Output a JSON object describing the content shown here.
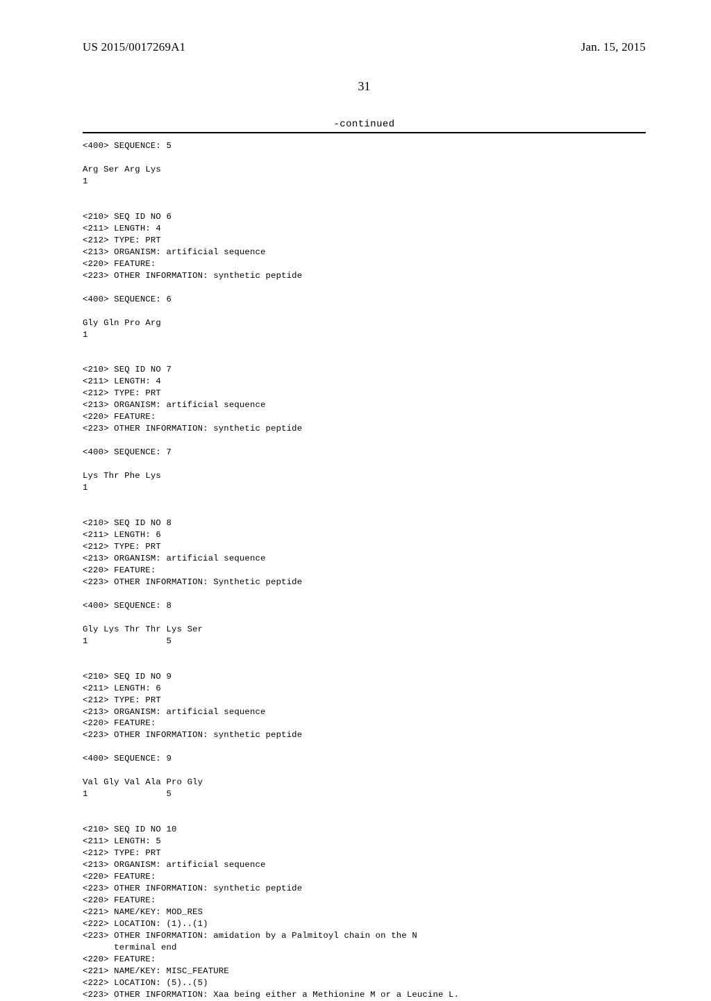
{
  "header": {
    "publication_number": "US 2015/0017269A1",
    "date": "Jan. 15, 2015"
  },
  "page_number": "31",
  "continued_label": "-continued",
  "listing_text": "<400> SEQUENCE: 5\n\nArg Ser Arg Lys\n1\n\n\n<210> SEQ ID NO 6\n<211> LENGTH: 4\n<212> TYPE: PRT\n<213> ORGANISM: artificial sequence\n<220> FEATURE:\n<223> OTHER INFORMATION: synthetic peptide\n\n<400> SEQUENCE: 6\n\nGly Gln Pro Arg\n1\n\n\n<210> SEQ ID NO 7\n<211> LENGTH: 4\n<212> TYPE: PRT\n<213> ORGANISM: artificial sequence\n<220> FEATURE:\n<223> OTHER INFORMATION: synthetic peptide\n\n<400> SEQUENCE: 7\n\nLys Thr Phe Lys\n1\n\n\n<210> SEQ ID NO 8\n<211> LENGTH: 6\n<212> TYPE: PRT\n<213> ORGANISM: artificial sequence\n<220> FEATURE:\n<223> OTHER INFORMATION: Synthetic peptide\n\n<400> SEQUENCE: 8\n\nGly Lys Thr Thr Lys Ser\n1               5\n\n\n<210> SEQ ID NO 9\n<211> LENGTH: 6\n<212> TYPE: PRT\n<213> ORGANISM: artificial sequence\n<220> FEATURE:\n<223> OTHER INFORMATION: synthetic peptide\n\n<400> SEQUENCE: 9\n\nVal Gly Val Ala Pro Gly\n1               5\n\n\n<210> SEQ ID NO 10\n<211> LENGTH: 5\n<212> TYPE: PRT\n<213> ORGANISM: artificial sequence\n<220> FEATURE:\n<223> OTHER INFORMATION: synthetic peptide\n<220> FEATURE:\n<221> NAME/KEY: MOD_RES\n<222> LOCATION: (1)..(1)\n<223> OTHER INFORMATION: amidation by a Palmitoyl chain on the N\n      terminal end\n<220> FEATURE:\n<221> NAME/KEY: MISC_FEATURE\n<222> LOCATION: (5)..(5)\n<223> OTHER INFORMATION: Xaa being either a Methionine M or a Leucine L."
}
